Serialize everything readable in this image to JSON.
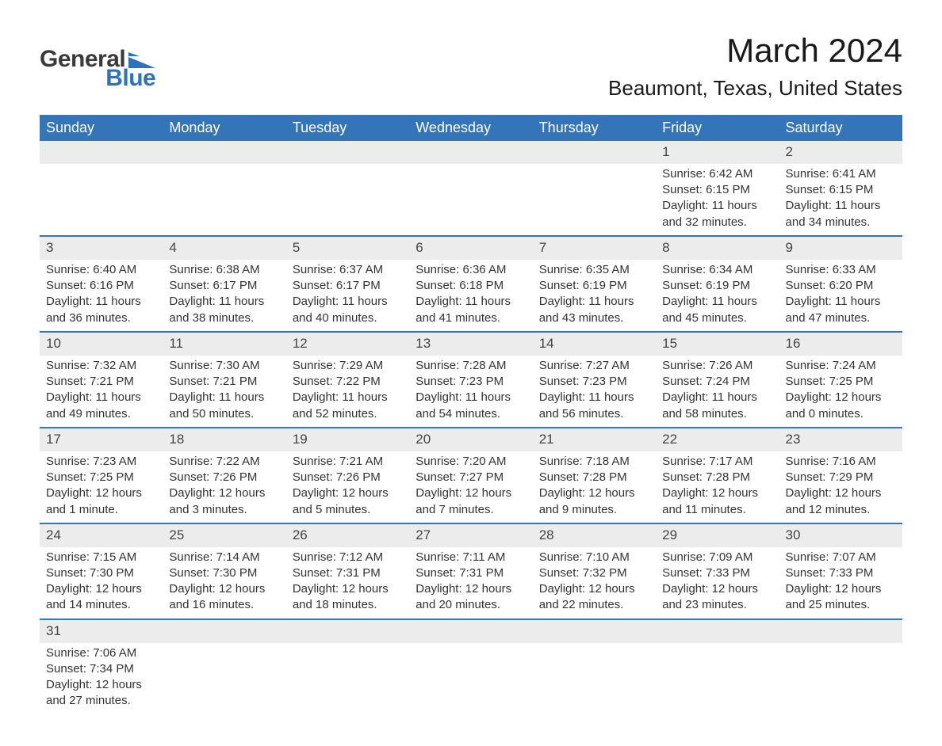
{
  "brand": {
    "part1": "General",
    "part2": "Blue",
    "logo_color": "#2f72b8"
  },
  "title": "March 2024",
  "location": "Beaumont, Texas, United States",
  "colors": {
    "header_bg": "#3375b8",
    "header_text": "#ffffff",
    "daynum_bg": "#ececec",
    "row_divider": "#3375b8",
    "body_text": "#333333"
  },
  "typography": {
    "font_family": "Arial",
    "title_size_pt": 32,
    "location_size_pt": 20,
    "header_size_pt": 14,
    "cell_size_pt": 11
  },
  "day_labels": [
    "Sunday",
    "Monday",
    "Tuesday",
    "Wednesday",
    "Thursday",
    "Friday",
    "Saturday"
  ],
  "weeks": [
    [
      null,
      null,
      null,
      null,
      null,
      {
        "d": "1",
        "sr": "Sunrise: 6:42 AM",
        "ss": "Sunset: 6:15 PM",
        "dl1": "Daylight: 11 hours",
        "dl2": "and 32 minutes."
      },
      {
        "d": "2",
        "sr": "Sunrise: 6:41 AM",
        "ss": "Sunset: 6:15 PM",
        "dl1": "Daylight: 11 hours",
        "dl2": "and 34 minutes."
      }
    ],
    [
      {
        "d": "3",
        "sr": "Sunrise: 6:40 AM",
        "ss": "Sunset: 6:16 PM",
        "dl1": "Daylight: 11 hours",
        "dl2": "and 36 minutes."
      },
      {
        "d": "4",
        "sr": "Sunrise: 6:38 AM",
        "ss": "Sunset: 6:17 PM",
        "dl1": "Daylight: 11 hours",
        "dl2": "and 38 minutes."
      },
      {
        "d": "5",
        "sr": "Sunrise: 6:37 AM",
        "ss": "Sunset: 6:17 PM",
        "dl1": "Daylight: 11 hours",
        "dl2": "and 40 minutes."
      },
      {
        "d": "6",
        "sr": "Sunrise: 6:36 AM",
        "ss": "Sunset: 6:18 PM",
        "dl1": "Daylight: 11 hours",
        "dl2": "and 41 minutes."
      },
      {
        "d": "7",
        "sr": "Sunrise: 6:35 AM",
        "ss": "Sunset: 6:19 PM",
        "dl1": "Daylight: 11 hours",
        "dl2": "and 43 minutes."
      },
      {
        "d": "8",
        "sr": "Sunrise: 6:34 AM",
        "ss": "Sunset: 6:19 PM",
        "dl1": "Daylight: 11 hours",
        "dl2": "and 45 minutes."
      },
      {
        "d": "9",
        "sr": "Sunrise: 6:33 AM",
        "ss": "Sunset: 6:20 PM",
        "dl1": "Daylight: 11 hours",
        "dl2": "and 47 minutes."
      }
    ],
    [
      {
        "d": "10",
        "sr": "Sunrise: 7:32 AM",
        "ss": "Sunset: 7:21 PM",
        "dl1": "Daylight: 11 hours",
        "dl2": "and 49 minutes."
      },
      {
        "d": "11",
        "sr": "Sunrise: 7:30 AM",
        "ss": "Sunset: 7:21 PM",
        "dl1": "Daylight: 11 hours",
        "dl2": "and 50 minutes."
      },
      {
        "d": "12",
        "sr": "Sunrise: 7:29 AM",
        "ss": "Sunset: 7:22 PM",
        "dl1": "Daylight: 11 hours",
        "dl2": "and 52 minutes."
      },
      {
        "d": "13",
        "sr": "Sunrise: 7:28 AM",
        "ss": "Sunset: 7:23 PM",
        "dl1": "Daylight: 11 hours",
        "dl2": "and 54 minutes."
      },
      {
        "d": "14",
        "sr": "Sunrise: 7:27 AM",
        "ss": "Sunset: 7:23 PM",
        "dl1": "Daylight: 11 hours",
        "dl2": "and 56 minutes."
      },
      {
        "d": "15",
        "sr": "Sunrise: 7:26 AM",
        "ss": "Sunset: 7:24 PM",
        "dl1": "Daylight: 11 hours",
        "dl2": "and 58 minutes."
      },
      {
        "d": "16",
        "sr": "Sunrise: 7:24 AM",
        "ss": "Sunset: 7:25 PM",
        "dl1": "Daylight: 12 hours",
        "dl2": "and 0 minutes."
      }
    ],
    [
      {
        "d": "17",
        "sr": "Sunrise: 7:23 AM",
        "ss": "Sunset: 7:25 PM",
        "dl1": "Daylight: 12 hours",
        "dl2": "and 1 minute."
      },
      {
        "d": "18",
        "sr": "Sunrise: 7:22 AM",
        "ss": "Sunset: 7:26 PM",
        "dl1": "Daylight: 12 hours",
        "dl2": "and 3 minutes."
      },
      {
        "d": "19",
        "sr": "Sunrise: 7:21 AM",
        "ss": "Sunset: 7:26 PM",
        "dl1": "Daylight: 12 hours",
        "dl2": "and 5 minutes."
      },
      {
        "d": "20",
        "sr": "Sunrise: 7:20 AM",
        "ss": "Sunset: 7:27 PM",
        "dl1": "Daylight: 12 hours",
        "dl2": "and 7 minutes."
      },
      {
        "d": "21",
        "sr": "Sunrise: 7:18 AM",
        "ss": "Sunset: 7:28 PM",
        "dl1": "Daylight: 12 hours",
        "dl2": "and 9 minutes."
      },
      {
        "d": "22",
        "sr": "Sunrise: 7:17 AM",
        "ss": "Sunset: 7:28 PM",
        "dl1": "Daylight: 12 hours",
        "dl2": "and 11 minutes."
      },
      {
        "d": "23",
        "sr": "Sunrise: 7:16 AM",
        "ss": "Sunset: 7:29 PM",
        "dl1": "Daylight: 12 hours",
        "dl2": "and 12 minutes."
      }
    ],
    [
      {
        "d": "24",
        "sr": "Sunrise: 7:15 AM",
        "ss": "Sunset: 7:30 PM",
        "dl1": "Daylight: 12 hours",
        "dl2": "and 14 minutes."
      },
      {
        "d": "25",
        "sr": "Sunrise: 7:14 AM",
        "ss": "Sunset: 7:30 PM",
        "dl1": "Daylight: 12 hours",
        "dl2": "and 16 minutes."
      },
      {
        "d": "26",
        "sr": "Sunrise: 7:12 AM",
        "ss": "Sunset: 7:31 PM",
        "dl1": "Daylight: 12 hours",
        "dl2": "and 18 minutes."
      },
      {
        "d": "27",
        "sr": "Sunrise: 7:11 AM",
        "ss": "Sunset: 7:31 PM",
        "dl1": "Daylight: 12 hours",
        "dl2": "and 20 minutes."
      },
      {
        "d": "28",
        "sr": "Sunrise: 7:10 AM",
        "ss": "Sunset: 7:32 PM",
        "dl1": "Daylight: 12 hours",
        "dl2": "and 22 minutes."
      },
      {
        "d": "29",
        "sr": "Sunrise: 7:09 AM",
        "ss": "Sunset: 7:33 PM",
        "dl1": "Daylight: 12 hours",
        "dl2": "and 23 minutes."
      },
      {
        "d": "30",
        "sr": "Sunrise: 7:07 AM",
        "ss": "Sunset: 7:33 PM",
        "dl1": "Daylight: 12 hours",
        "dl2": "and 25 minutes."
      }
    ],
    [
      {
        "d": "31",
        "sr": "Sunrise: 7:06 AM",
        "ss": "Sunset: 7:34 PM",
        "dl1": "Daylight: 12 hours",
        "dl2": "and 27 minutes."
      },
      null,
      null,
      null,
      null,
      null,
      null
    ]
  ]
}
